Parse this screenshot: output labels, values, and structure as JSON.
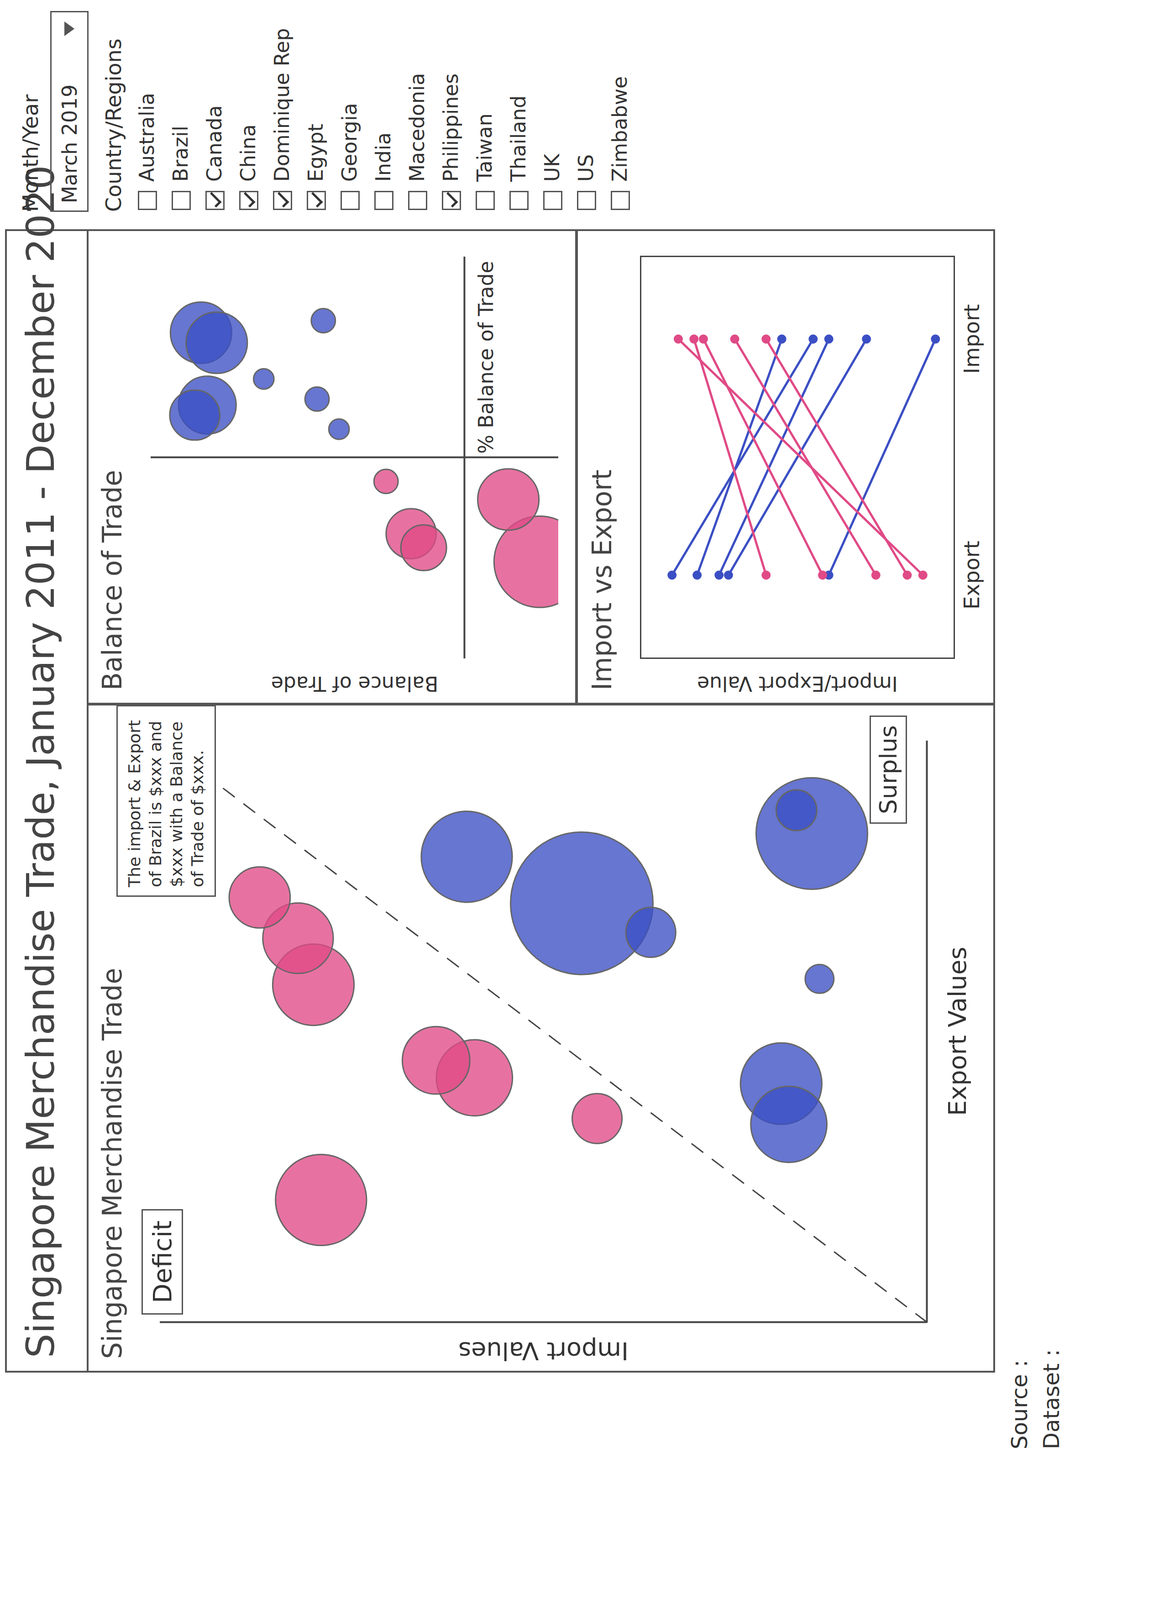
{
  "title": "Singapore Merchandise Trade, January 2011 - December 2020",
  "filters": {
    "month_year": {
      "label": "Month/Year",
      "value": "March 2019"
    },
    "countries": {
      "label": "Country/Regions",
      "options": [
        {
          "name": "Australia",
          "checked": false
        },
        {
          "name": "Brazil",
          "checked": false
        },
        {
          "name": "Canada",
          "checked": true
        },
        {
          "name": "China",
          "checked": true
        },
        {
          "name": "Dominique Rep",
          "checked": true
        },
        {
          "name": "Egypt",
          "checked": true
        },
        {
          "name": "Georgia",
          "checked": false
        },
        {
          "name": "India",
          "checked": false
        },
        {
          "name": "Macedonia",
          "checked": false
        },
        {
          "name": "Philippines",
          "checked": true
        },
        {
          "name": "Taiwan",
          "checked": false
        },
        {
          "name": "Thailand",
          "checked": false
        },
        {
          "name": "UK",
          "checked": false
        },
        {
          "name": "US",
          "checked": false
        },
        {
          "name": "Zimbabwe",
          "checked": false
        }
      ]
    }
  },
  "footer": [
    "Source :",
    "Dataset :"
  ],
  "chart_data": [
    {
      "type": "bubble",
      "title": "Singapore Merchandise Trade",
      "x_label": "Export Values",
      "y_label": "Import Values",
      "xlim": [
        0,
        100
      ],
      "ylim": [
        0,
        100
      ],
      "tick_labels": false,
      "annotations": [
        "Deficit",
        "Surplus",
        "The import & Export of Brazil is $xxx and $xxx with a Balance of Trade of $xxx."
      ],
      "series": [
        {
          "color": "#e04a86",
          "x": [
            21,
            58,
            66,
            73,
            42,
            45,
            35
          ],
          "y": [
            79,
            80,
            82,
            87,
            59,
            64,
            43
          ],
          "size": [
            20,
            16,
            12,
            9,
            14,
            11,
            6
          ]
        },
        {
          "color": "#3b4fc4",
          "x": [
            80,
            72,
            67,
            59,
            84,
            88,
            41,
            34
          ],
          "y": [
            60,
            45,
            36,
            14,
            15,
            17,
            19,
            18
          ],
          "size": [
            20,
            49,
            6,
            2,
            30,
            4,
            16,
            14
          ]
        }
      ]
    },
    {
      "type": "bubble",
      "title": "Balance of Trade",
      "x_label": "% Balance of Trade",
      "y_label": "Balance of Trade",
      "xlim": [
        -100,
        100
      ],
      "ylim": [
        -30,
        100
      ],
      "xticks": [
        0
      ],
      "yticks": [
        0
      ],
      "grid": true,
      "tick_labels": false,
      "series": [
        {
          "color": "#3b4fc4",
          "x": [
            62,
            57,
            68,
            39,
            26,
            21,
            29,
            14
          ],
          "y": [
            84,
            79,
            45,
            64,
            82,
            86,
            47,
            40
          ],
          "size": [
            9,
            9,
            1.4,
            1,
            8,
            6,
            1.4,
            1
          ]
        },
        {
          "color": "#e04a86",
          "x": [
            -12,
            -38,
            -45,
            -21,
            -52
          ],
          "y": [
            25,
            17,
            13,
            -14,
            -24
          ],
          "size": [
            1.4,
            6,
            5,
            9,
            20
          ]
        }
      ]
    },
    {
      "type": "line",
      "title": "Import vs Export",
      "y_label": "Import/Export Value",
      "categories": [
        "Export",
        "Import"
      ],
      "ylim": [
        0,
        100
      ],
      "tick_labels": "x",
      "marker": "circle",
      "series": [
        {
          "color": "#3b4fc4",
          "values": [
            82,
            55
          ]
        },
        {
          "color": "#3b4fc4",
          "values": [
            72,
            28
          ]
        },
        {
          "color": "#3b4fc4",
          "values": [
            90,
            45
          ]
        },
        {
          "color": "#3b4fc4",
          "values": [
            75,
            40
          ]
        },
        {
          "color": "#3b4fc4",
          "values": [
            40,
            6
          ]
        },
        {
          "color": "#e04a86",
          "values": [
            10,
            88
          ]
        },
        {
          "color": "#e04a86",
          "values": [
            42,
            80
          ]
        },
        {
          "color": "#e04a86",
          "values": [
            25,
            70
          ]
        },
        {
          "color": "#e04a86",
          "values": [
            60,
            83
          ]
        },
        {
          "color": "#e04a86",
          "values": [
            15,
            60
          ]
        }
      ]
    }
  ]
}
